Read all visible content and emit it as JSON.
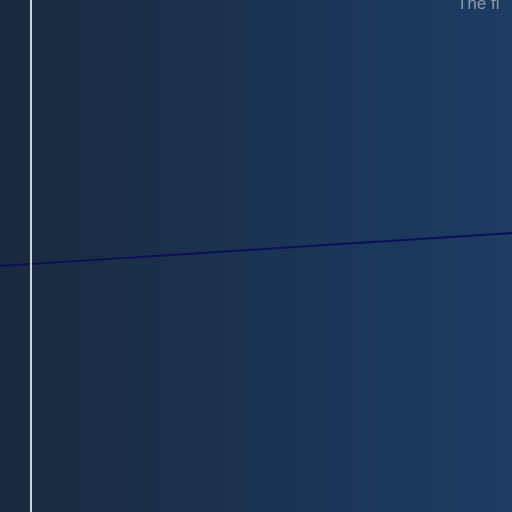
{
  "corner_text": "The fi",
  "colors": {
    "background_left": "#1a2a3d",
    "background_right": "#1c3c62",
    "vertical_rule": "#cfd3d8",
    "diagonal_line": "#0b0f5c",
    "corner_text": "#8f9aa6"
  }
}
